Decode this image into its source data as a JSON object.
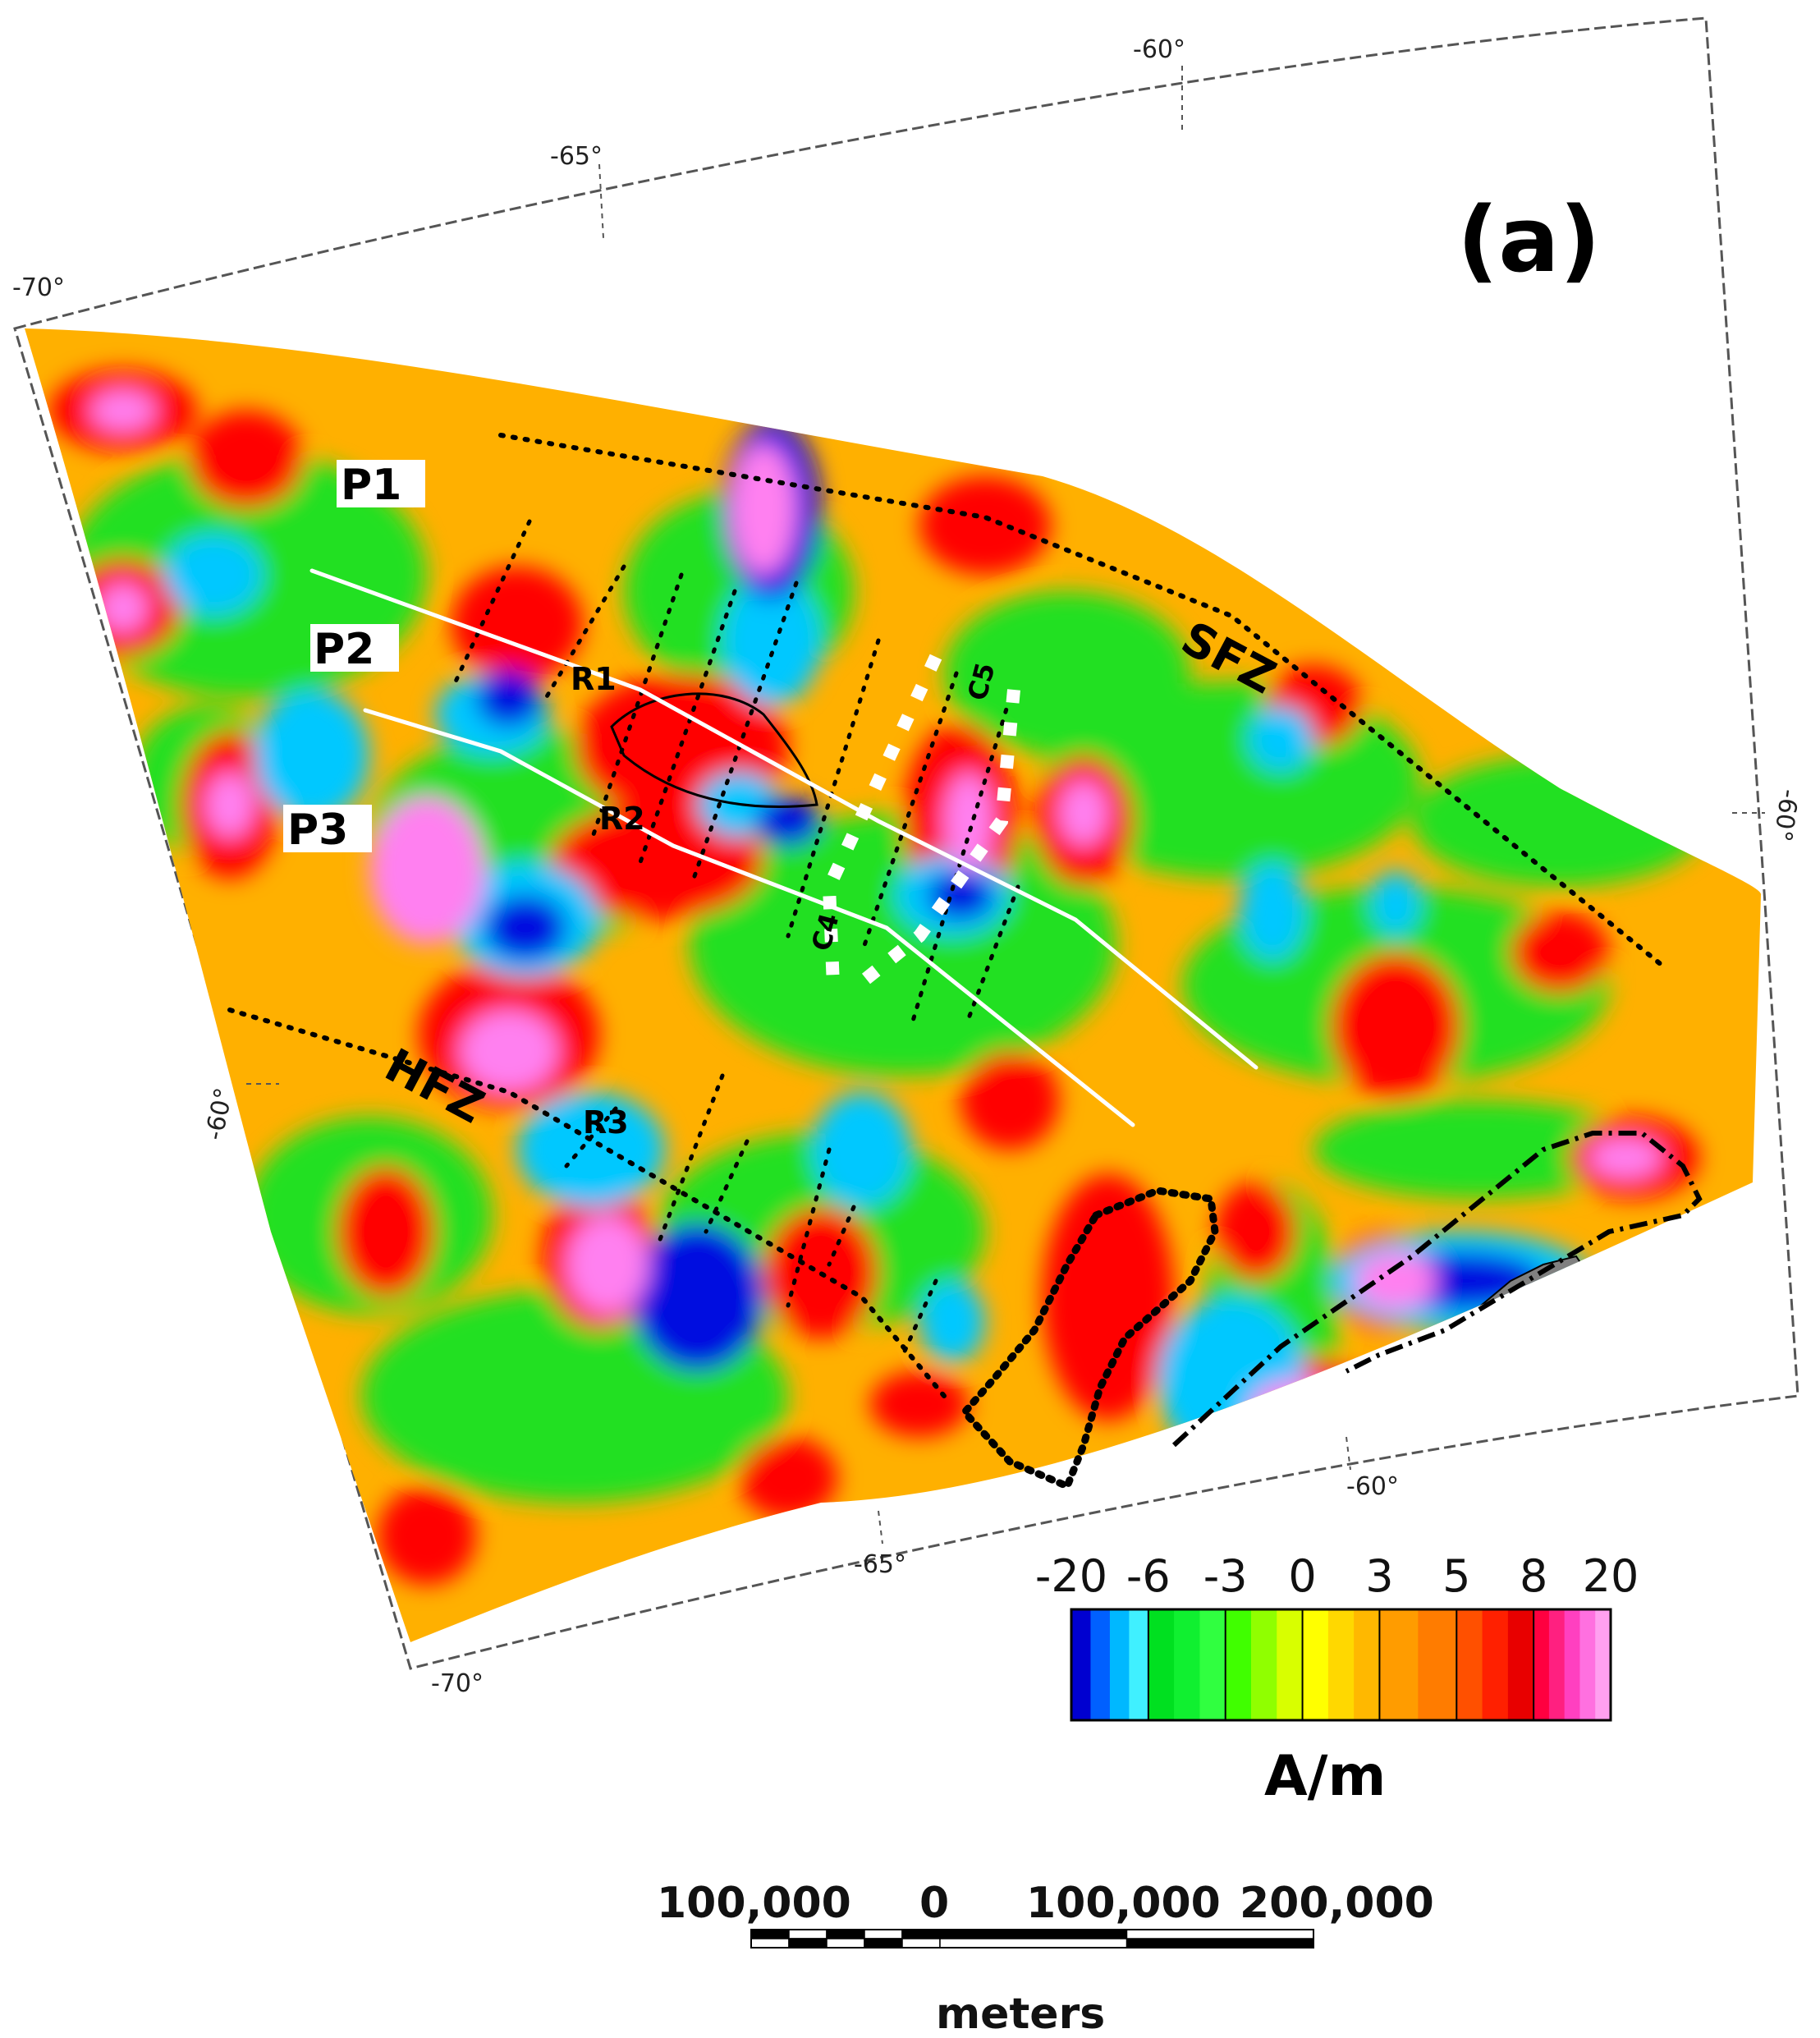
{
  "panel_label": "(a)",
  "graticule": {
    "top_lon_labels": [
      "-70°",
      "-65°",
      "-60°"
    ],
    "bottom_lon_labels": [
      "-70°",
      "-65°",
      "-60°"
    ],
    "left_lat_label": "-60°",
    "right_lat_label": "-60°"
  },
  "profiles": [
    "P1",
    "P2",
    "P3"
  ],
  "regions": [
    "R1",
    "R2",
    "R3"
  ],
  "chrons": [
    "C4",
    "C5"
  ],
  "fault_zones": [
    "SFZ",
    "HFZ"
  ],
  "colorbar": {
    "ticks": [
      "-20",
      "-6",
      "-3",
      "0",
      "3",
      "5",
      "8",
      "20"
    ],
    "unit": "A/m",
    "segment_colors": [
      [
        "#0000d0",
        "#0060ff",
        "#00b8ff",
        "#40f0ff"
      ],
      [
        "#00e020",
        "#10f030",
        "#30ff40"
      ],
      [
        "#40ff00",
        "#90ff00",
        "#d8ff00"
      ],
      [
        "#ffff00",
        "#ffd800",
        "#ffb800"
      ],
      [
        "#ff9c00",
        "#ff7c00"
      ],
      [
        "#ff5000",
        "#ff2000",
        "#e80000"
      ],
      [
        "#ff0040",
        "#ff2080",
        "#ff40c0",
        "#ff70e0",
        "#ffa0f0"
      ]
    ]
  },
  "scale_bar": {
    "labels": [
      "100,000",
      "0",
      "100,000",
      "200,000"
    ],
    "unit": "meters"
  },
  "colors": {
    "anomaly_background": "#ffb000",
    "positive_strong": "#ff0000",
    "positive_peak": "#ff80f0",
    "neutral": "#20e020",
    "negative": "#00c8ff",
    "negative_strong": "#0010e0",
    "land": "#808080"
  }
}
